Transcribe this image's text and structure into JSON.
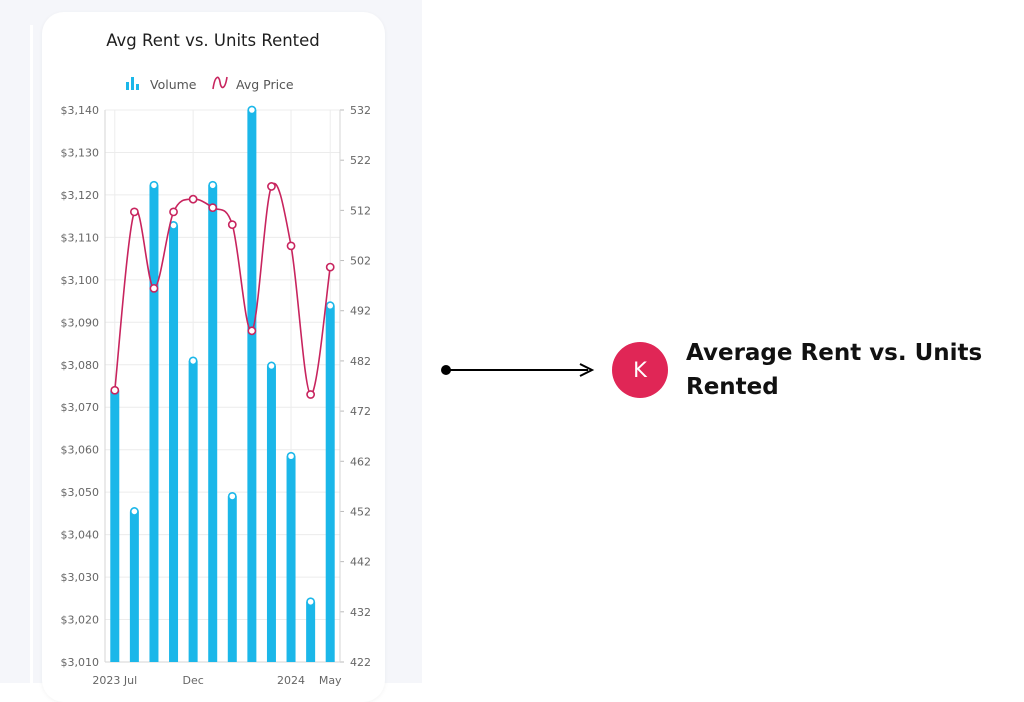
{
  "callout": {
    "avatar_letter": "K",
    "text": "Average Rent vs. Units Rented"
  },
  "colors": {
    "bar": "#1bb7e9",
    "line": "#c8245e",
    "avatar": "#e02656"
  },
  "legend_icons": {
    "volume": "bar-chart-icon",
    "avg_price": "wave-line-icon"
  },
  "chart_data": {
    "type": "bar",
    "title": "Avg Rent vs. Units Rented",
    "legend": [
      "Volume",
      "Avg Price"
    ],
    "left_ticks": [
      "$3,140",
      "$3,130",
      "$3,120",
      "$3,110",
      "$3,100",
      "$3,090",
      "$3,080",
      "$3,070",
      "$3,060",
      "$3,050",
      "$3,040",
      "$3,030",
      "$3,020",
      "$3,010"
    ],
    "right_ticks": [
      "532",
      "522",
      "512",
      "502",
      "492",
      "482",
      "472",
      "462",
      "452",
      "442",
      "432",
      "422"
    ],
    "x_ticks": [
      {
        "label": "2023 Jul",
        "index": 0
      },
      {
        "label": "Dec",
        "index": 4
      },
      {
        "label": "2024",
        "index": 9
      },
      {
        "label": "May",
        "index": 11
      }
    ],
    "left_axis": {
      "min": 3010,
      "max": 3140
    },
    "right_axis": {
      "min": 422,
      "max": 532
    },
    "series": [
      {
        "name": "Volume",
        "axis": "right",
        "kind": "bar",
        "values": [
          476,
          452,
          517,
          509,
          482,
          517,
          455,
          532,
          481,
          463,
          434,
          493
        ]
      },
      {
        "name": "Avg Price",
        "axis": "left",
        "kind": "line",
        "values": [
          3074,
          3116,
          3098,
          3116,
          3119,
          3117,
          3113,
          3088,
          3122,
          3108,
          3073,
          3103
        ]
      }
    ]
  }
}
